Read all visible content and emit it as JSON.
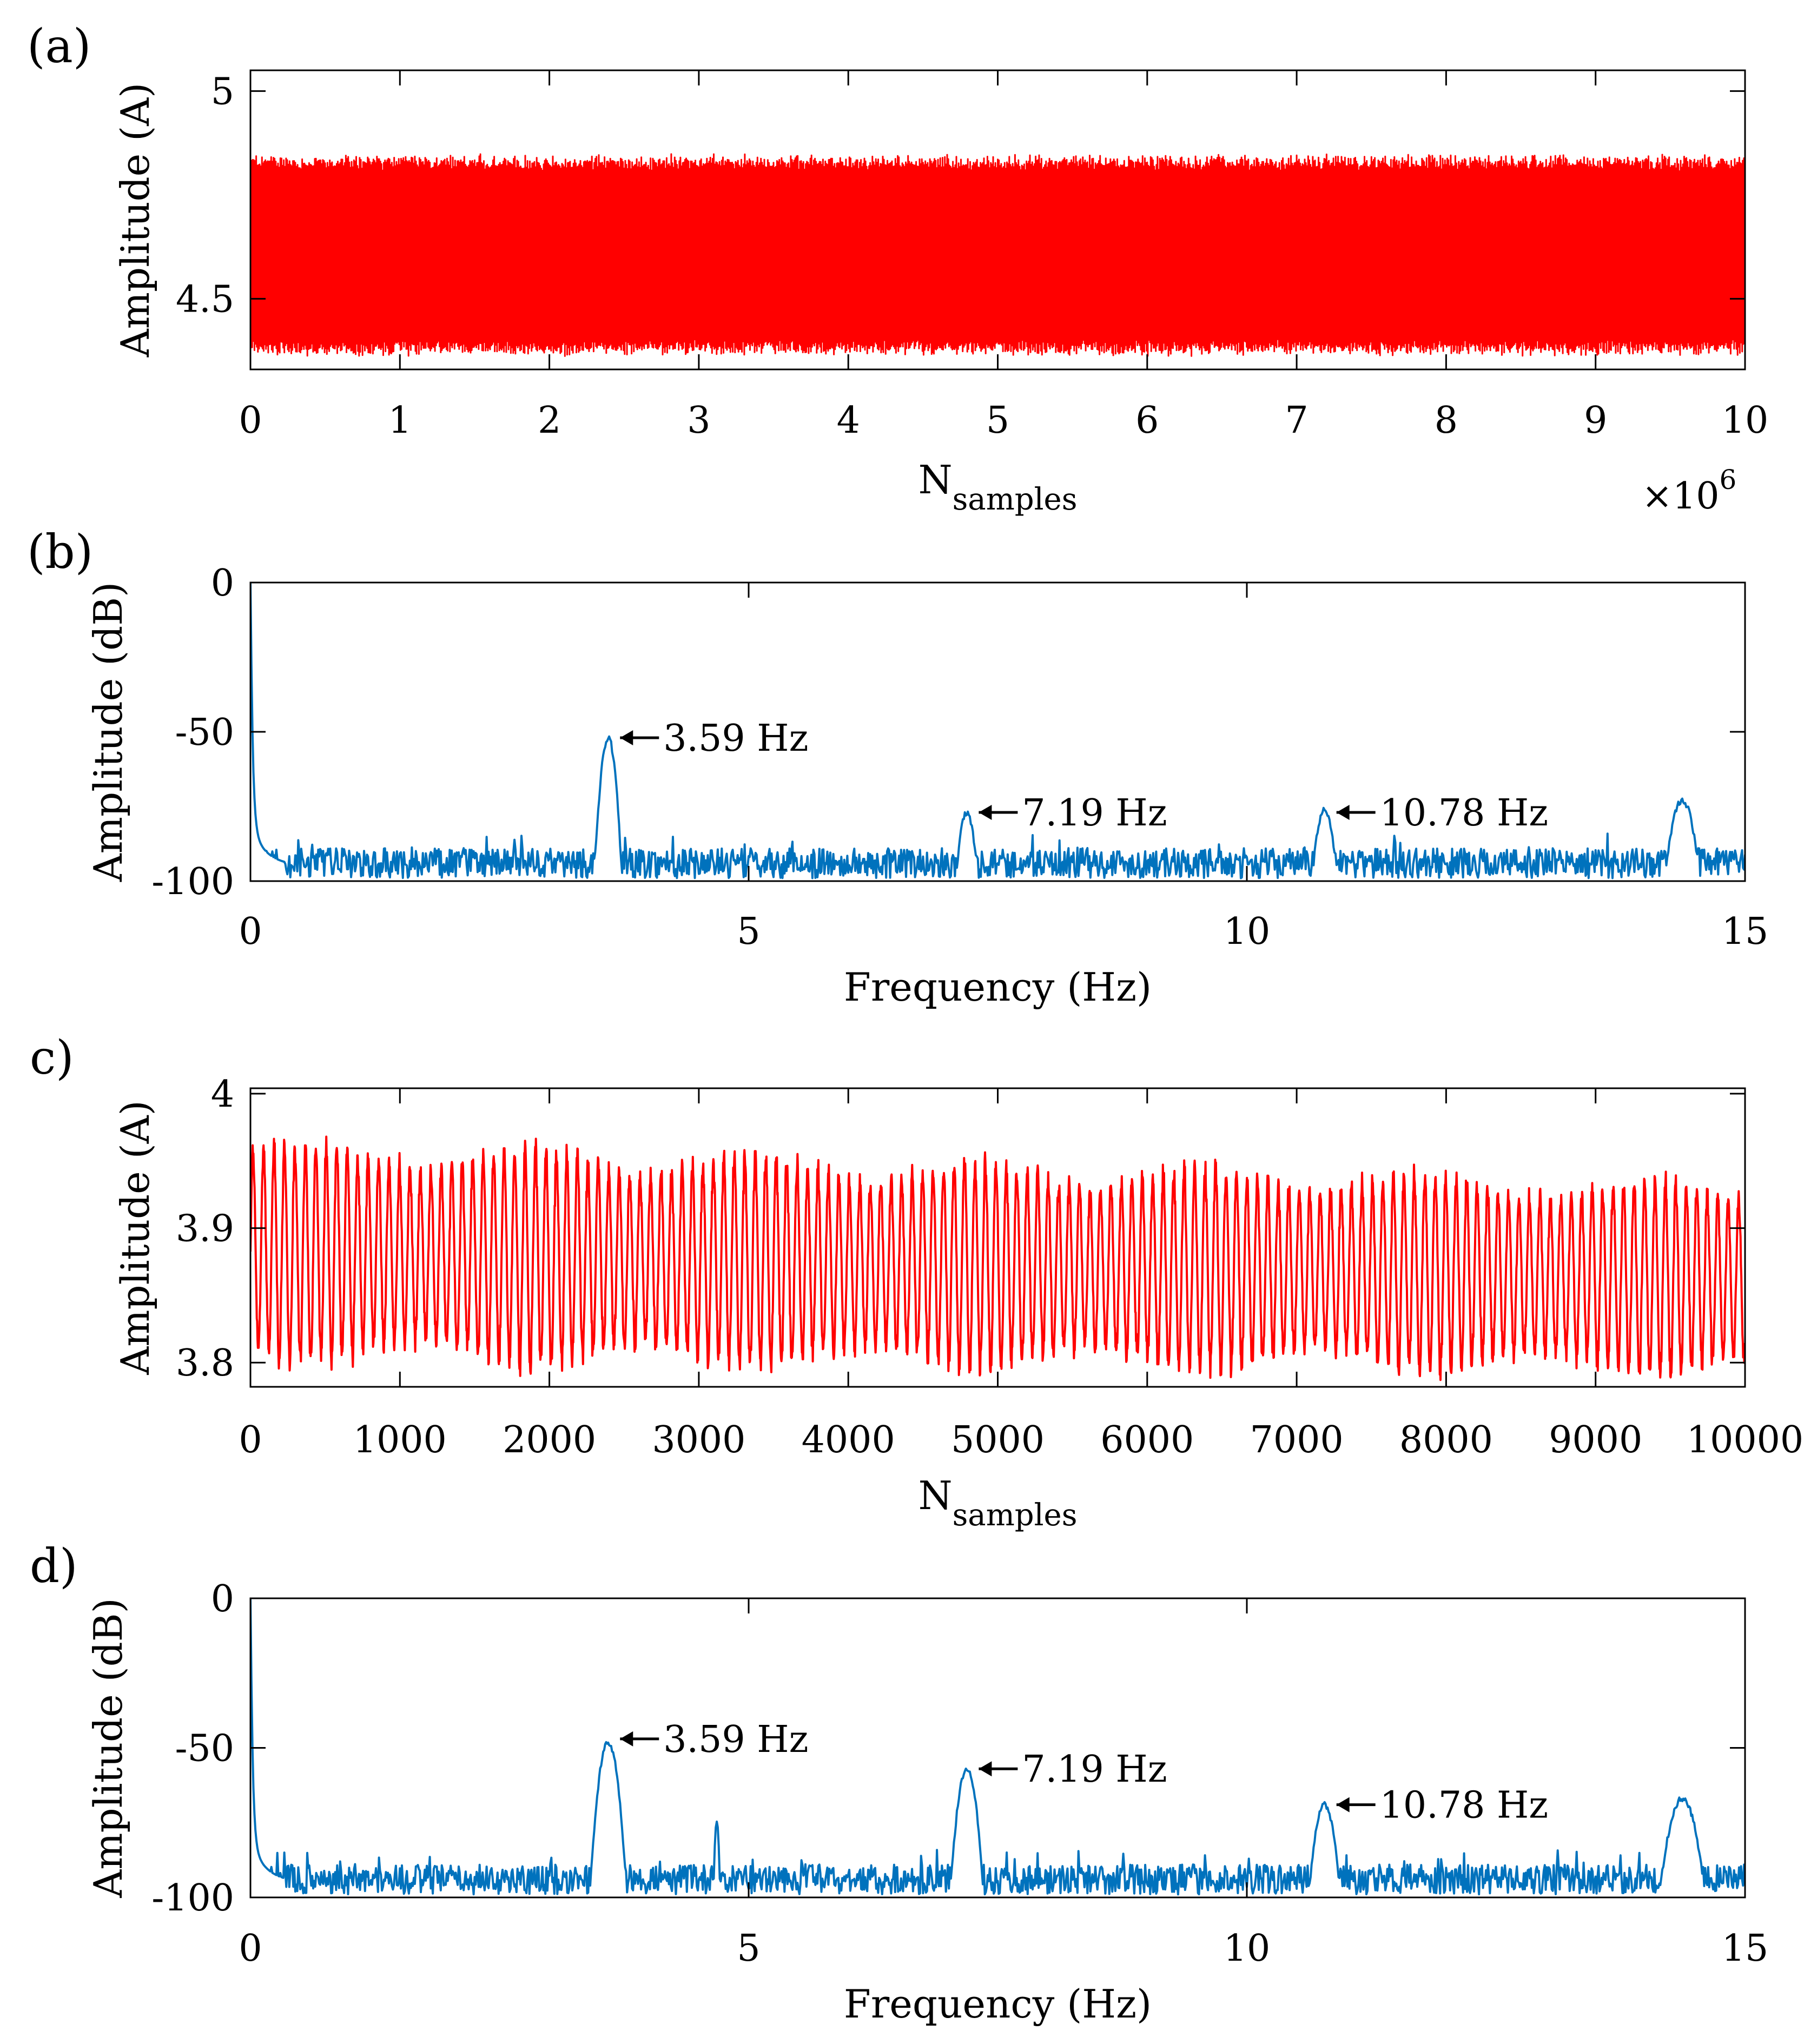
{
  "chart_data": [
    {
      "panel": "(a)",
      "type": "line",
      "description_series": "current signal vs sample index",
      "xlabel": "N",
      "xlabel_sub": "samples",
      "ylabel": "Amplitude (A)",
      "xlim": [
        0,
        10
      ],
      "ylim": [
        4.33,
        5.05
      ],
      "x_ticks": [
        0,
        1,
        2,
        3,
        4,
        5,
        6,
        7,
        8,
        9,
        10
      ],
      "x_tick_labels": [
        "0",
        "1",
        "2",
        "3",
        "4",
        "5",
        "6",
        "7",
        "8",
        "9",
        "10"
      ],
      "y_ticks": [
        4.5,
        5
      ],
      "y_tick_labels": [
        "4.5",
        "5"
      ],
      "x_exponent_base": "×10",
      "x_exponent_power": "6",
      "signal": {
        "center": 4.605,
        "half_amplitude": 0.225,
        "jitter": 0.015
      },
      "color": "#ff0000"
    },
    {
      "panel": "(b)",
      "type": "line",
      "xlabel": "Frequency (Hz)",
      "ylabel": "Amplitude (dB)",
      "xlim": [
        0,
        15
      ],
      "ylim": [
        -100,
        0
      ],
      "x_ticks": [
        0,
        5,
        10,
        15
      ],
      "x_tick_labels": [
        "0",
        "5",
        "10",
        "15"
      ],
      "y_ticks": [
        0,
        -50,
        -100
      ],
      "y_tick_labels": [
        "0",
        "-50",
        "-100"
      ],
      "noise_floor": -94,
      "peaks": [
        {
          "f": 3.59,
          "db": -52,
          "w": 0.035
        },
        {
          "f": 7.19,
          "db": -77,
          "w": 0.04
        },
        {
          "f": 10.78,
          "db": -76,
          "w": 0.045
        },
        {
          "f": 14.37,
          "db": -73,
          "w": 0.06
        }
      ],
      "annotations": [
        {
          "text": "3.59 Hz",
          "f": 3.59,
          "db": -52
        },
        {
          "text": "7.19 Hz",
          "f": 7.19,
          "db": -77
        },
        {
          "text": "10.78 Hz",
          "f": 10.78,
          "db": -77
        }
      ],
      "color": "#0072bd"
    },
    {
      "panel": "c)",
      "type": "line",
      "xlabel": "N",
      "xlabel_sub": "samples",
      "ylabel": "Amplitude (A)",
      "xlim": [
        0,
        10000
      ],
      "ylim": [
        3.782,
        4.004
      ],
      "x_ticks": [
        0,
        1000,
        2000,
        3000,
        4000,
        5000,
        6000,
        7000,
        8000,
        9000,
        10000
      ],
      "x_tick_labels": [
        "0",
        "1000",
        "2000",
        "3000",
        "4000",
        "5000",
        "6000",
        "7000",
        "8000",
        "9000",
        "10000"
      ],
      "y_ticks": [
        3.8,
        3.9,
        4.0
      ],
      "y_tick_labels": [
        "3.8",
        "3.9",
        "4"
      ],
      "signal": {
        "center_start": 3.882,
        "center_end": 3.862,
        "half_amplitude_start": 0.085,
        "half_amplitude_end": 0.073,
        "period_samples": 70
      },
      "color": "#ff0000"
    },
    {
      "panel": "d)",
      "type": "line",
      "xlabel": "Frequency (Hz)",
      "ylabel": "Amplitude (dB)",
      "xlim": [
        0,
        15
      ],
      "ylim": [
        -100,
        0
      ],
      "x_ticks": [
        0,
        5,
        10,
        15
      ],
      "x_tick_labels": [
        "0",
        "5",
        "10",
        "15"
      ],
      "y_ticks": [
        0,
        -50,
        -100
      ],
      "y_tick_labels": [
        "0",
        "-50",
        "-100"
      ],
      "noise_floor": -94,
      "peaks": [
        {
          "f": 3.59,
          "db": -48,
          "w": 0.045
        },
        {
          "f": 4.68,
          "db": -74,
          "w": 0.012
        },
        {
          "f": 7.19,
          "db": -57,
          "w": 0.045
        },
        {
          "f": 10.78,
          "db": -69,
          "w": 0.05
        },
        {
          "f": 14.37,
          "db": -67,
          "w": 0.07
        }
      ],
      "annotations": [
        {
          "text": "3.59 Hz",
          "f": 3.59,
          "db": -47
        },
        {
          "text": "7.19 Hz",
          "f": 7.19,
          "db": -57
        },
        {
          "text": "10.78 Hz",
          "f": 10.78,
          "db": -69
        }
      ],
      "color": "#0072bd"
    }
  ]
}
